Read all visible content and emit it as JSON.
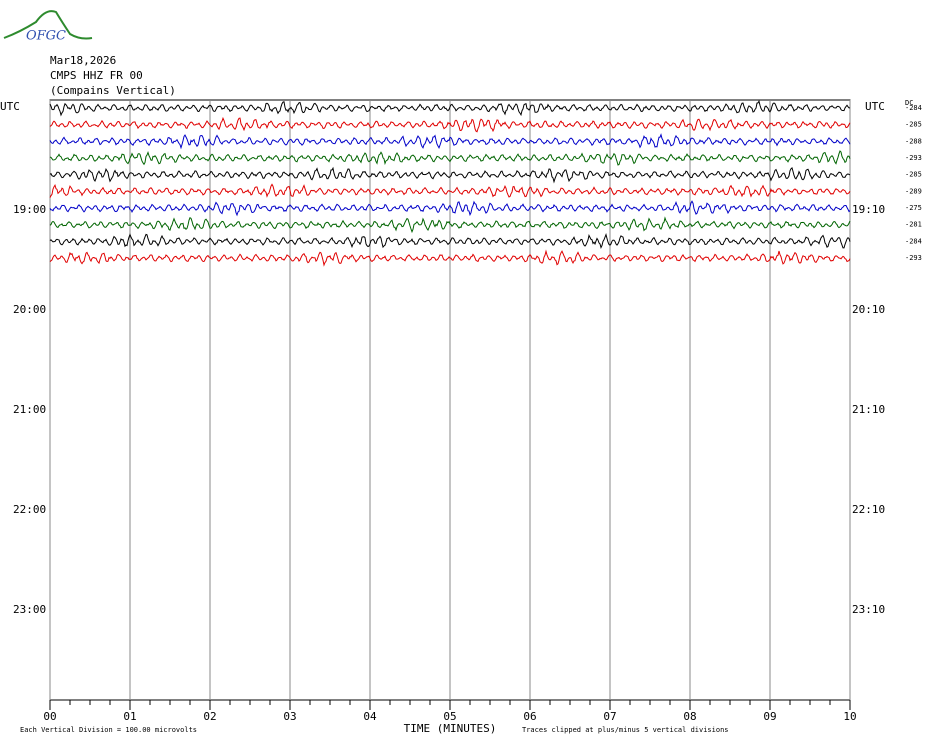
{
  "chart_data": {
    "type": "helicorder",
    "logo": "OFGC",
    "date": "Mar18,2026",
    "station": "CMPS HHZ FR 00",
    "station_name": "(Compains Vertical)",
    "left_labels": [
      "UTC",
      "19:00",
      "20:00",
      "21:00",
      "22:00",
      "23:00"
    ],
    "right_labels": [
      "UTC",
      "19:10",
      "20:10",
      "21:10",
      "22:10",
      "23:10"
    ],
    "dc_header": "DC",
    "traces": [
      {
        "color": "#000000",
        "dc": -284
      },
      {
        "color": "#e00000",
        "dc": -285
      },
      {
        "color": "#0000c8",
        "dc": -288
      },
      {
        "color": "#006400",
        "dc": -293
      },
      {
        "color": "#000000",
        "dc": -285
      },
      {
        "color": "#e00000",
        "dc": -289
      },
      {
        "color": "#0000c8",
        "dc": -275
      },
      {
        "color": "#006400",
        "dc": -281
      },
      {
        "color": "#000000",
        "dc": -284
      },
      {
        "color": "#e00000",
        "dc": -293
      }
    ],
    "xlim": [
      0,
      10
    ],
    "xticks": [
      {
        "value": 0,
        "label": "00"
      },
      {
        "value": 1,
        "label": "01"
      },
      {
        "value": 2,
        "label": "02"
      },
      {
        "value": 3,
        "label": "03"
      },
      {
        "value": 4,
        "label": "04"
      },
      {
        "value": 5,
        "label": "05"
      },
      {
        "value": 6,
        "label": "06"
      },
      {
        "value": 7,
        "label": "07"
      },
      {
        "value": 8,
        "label": "08"
      },
      {
        "value": 9,
        "label": "09"
      },
      {
        "value": 10,
        "label": "10"
      }
    ],
    "xlabel": "TIME (MINUTES)",
    "division_note": "Each Vertical Division =  100.00 microvolts",
    "clip_note": "Traces clipped at plus/minus 5 vertical divisions",
    "grid": true
  }
}
